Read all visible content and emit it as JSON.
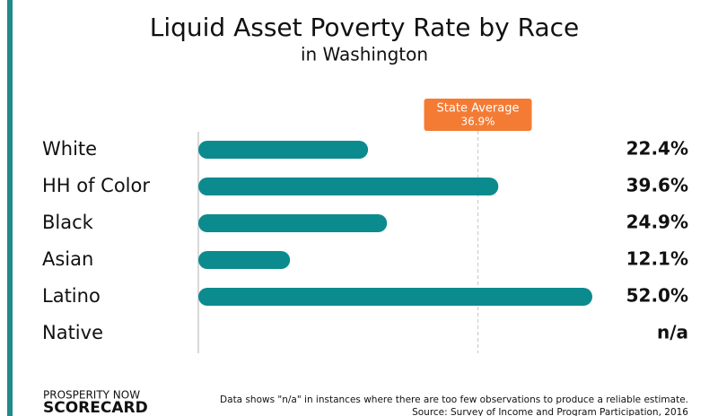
{
  "chart_data": {
    "type": "bar",
    "orientation": "horizontal",
    "title": "Liquid Asset Poverty Rate by Race",
    "subtitle": "in Washington",
    "categories": [
      "White",
      "HH of Color",
      "Black",
      "Asian",
      "Latino",
      "Native"
    ],
    "values": [
      22.4,
      39.6,
      24.9,
      12.1,
      52.0,
      null
    ],
    "value_labels": [
      "22.4%",
      "39.6%",
      "24.9%",
      "12.1%",
      "52.0%",
      "n/a"
    ],
    "color": "#0b8b8e",
    "reference": {
      "label": "State Average",
      "value": 36.9,
      "value_label": "36.9%",
      "color": "#f47b34"
    },
    "logo": [
      "PROSPERITY NOW",
      "SCORECARD"
    ],
    "notes": [
      "Data shows \"n/a\" in instances where there are too few observations to produce a reliable estimate.",
      "Source: Survey of Income and Program Participation, 2016"
    ]
  }
}
